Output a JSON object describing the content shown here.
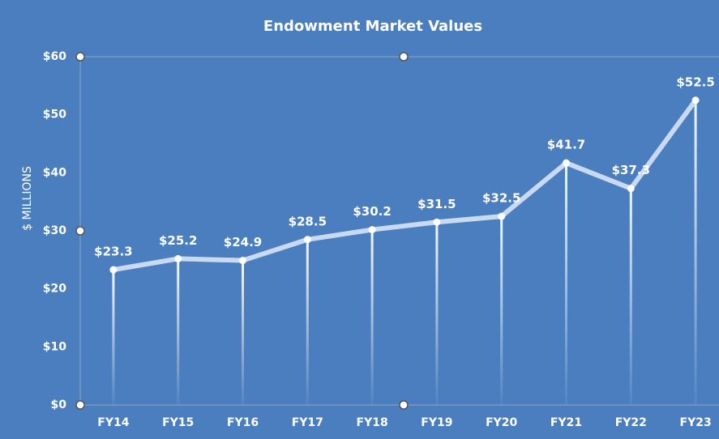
{
  "chart_data": {
    "type": "line",
    "title": "Endowment Market Values",
    "y_label": "$ MILLIONS",
    "categories": [
      "FY14",
      "FY15",
      "FY16",
      "FY17",
      "FY18",
      "FY19",
      "FY20",
      "FY21",
      "FY22",
      "FY23"
    ],
    "values": [
      23.3,
      25.2,
      24.9,
      28.5,
      30.2,
      31.5,
      32.5,
      41.7,
      37.3,
      52.5
    ],
    "value_labels": [
      "$23.3",
      "$25.2",
      "$24.9",
      "$28.5",
      "$30.2",
      "$31.5",
      "$32.5",
      "$41.7",
      "$37.3",
      "$52.5"
    ],
    "color": "#c9d9f0",
    "ylim": [
      0,
      60
    ],
    "yticks": [
      {
        "value": 0,
        "label": "$0"
      },
      {
        "value": 10,
        "label": "$10"
      },
      {
        "value": 20,
        "label": "$20"
      },
      {
        "value": 30,
        "label": "$30"
      },
      {
        "value": 40,
        "label": "$40"
      },
      {
        "value": 50,
        "label": "$50"
      },
      {
        "value": 60,
        "label": "$60"
      }
    ],
    "grid": false
  }
}
